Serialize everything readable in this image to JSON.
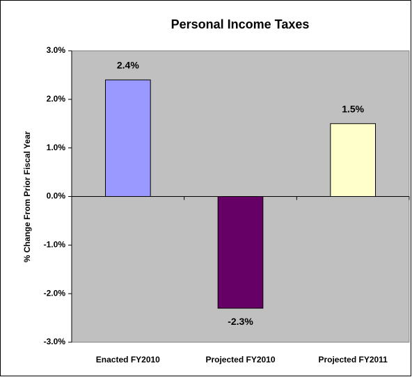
{
  "chart_data": {
    "type": "bar",
    "title": "Personal Income Taxes",
    "y_label": "% Change From Prior Fiscal Year",
    "categories": [
      "Enacted FY2010",
      "Projected FY2010",
      "Projected FY2011"
    ],
    "values": [
      2.4,
      -2.3,
      1.5
    ],
    "value_labels": [
      "2.4%",
      "-2.3%",
      "1.5%"
    ],
    "colors": [
      "#9999ff",
      "#660066",
      "#ffffcc"
    ],
    "ylim": [
      -3,
      3
    ],
    "yticks": [
      {
        "value": 3,
        "label": "3.0%"
      },
      {
        "value": 2,
        "label": "2.0%"
      },
      {
        "value": 1,
        "label": "1.0%"
      },
      {
        "value": 0,
        "label": "0.0%"
      },
      {
        "value": -1,
        "label": "-1.0%"
      },
      {
        "value": -2,
        "label": "-2.0%"
      },
      {
        "value": -3,
        "label": "-3.0%"
      }
    ]
  }
}
